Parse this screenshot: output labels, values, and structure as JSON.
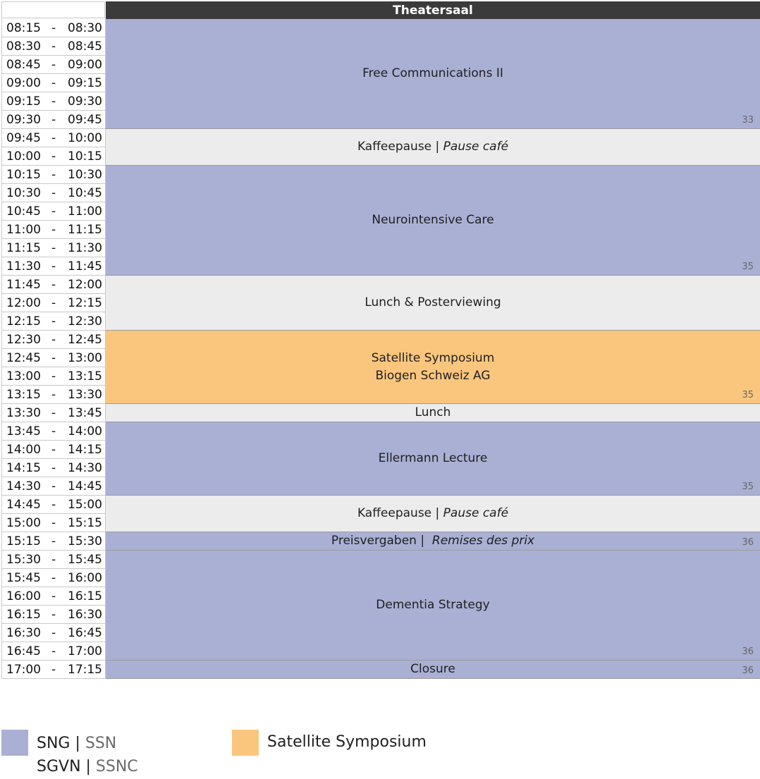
{
  "header": {
    "room": "Theatersaal"
  },
  "times": [
    [
      "08:15",
      "08:30"
    ],
    [
      "08:30",
      "08:45"
    ],
    [
      "08:45",
      "09:00"
    ],
    [
      "09:00",
      "09:15"
    ],
    [
      "09:15",
      "09:30"
    ],
    [
      "09:30",
      "09:45"
    ],
    [
      "09:45",
      "10:00"
    ],
    [
      "10:00",
      "10:15"
    ],
    [
      "10:15",
      "10:30"
    ],
    [
      "10:30",
      "10:45"
    ],
    [
      "10:45",
      "11:00"
    ],
    [
      "11:00",
      "11:15"
    ],
    [
      "11:15",
      "11:30"
    ],
    [
      "11:30",
      "11:45"
    ],
    [
      "11:45",
      "12:00"
    ],
    [
      "12:00",
      "12:15"
    ],
    [
      "12:15",
      "12:30"
    ],
    [
      "12:30",
      "12:45"
    ],
    [
      "12:45",
      "13:00"
    ],
    [
      "13:00",
      "13:15"
    ],
    [
      "13:15",
      "13:30"
    ],
    [
      "13:30",
      "13:45"
    ],
    [
      "13:45",
      "14:00"
    ],
    [
      "14:00",
      "14:15"
    ],
    [
      "14:15",
      "14:30"
    ],
    [
      "14:30",
      "14:45"
    ],
    [
      "14:45",
      "15:00"
    ],
    [
      "15:00",
      "15:15"
    ],
    [
      "15:15",
      "15:30"
    ],
    [
      "15:30",
      "15:45"
    ],
    [
      "15:45",
      "16:00"
    ],
    [
      "16:00",
      "16:15"
    ],
    [
      "16:15",
      "16:30"
    ],
    [
      "16:30",
      "16:45"
    ],
    [
      "16:45",
      "17:00"
    ],
    [
      "17:00",
      "17:15"
    ]
  ],
  "dash": "-",
  "sessions": [
    {
      "title": "Free Communications II",
      "type": "sng",
      "start": 0,
      "slots": 6,
      "page": "33"
    },
    {
      "title": "Kaffeepause | ",
      "title_italic": "Pause café",
      "type": "break",
      "start": 6,
      "slots": 2,
      "page": ""
    },
    {
      "title": "Neurointensive Care",
      "type": "sng",
      "start": 8,
      "slots": 6,
      "page": "35"
    },
    {
      "title": "Lunch & Posterviewing",
      "type": "break",
      "start": 14,
      "slots": 3,
      "page": ""
    },
    {
      "title": "Satellite Symposium",
      "title_line2": "Biogen Schweiz AG",
      "type": "sat",
      "start": 17,
      "slots": 4,
      "page": "35"
    },
    {
      "title": "Lunch",
      "type": "break",
      "start": 21,
      "slots": 1,
      "page": ""
    },
    {
      "title": "Ellermann Lecture",
      "type": "sng",
      "start": 22,
      "slots": 4,
      "page": "35"
    },
    {
      "title": "Kaffeepause | ",
      "title_italic": "Pause café",
      "type": "break",
      "start": 26,
      "slots": 2,
      "page": ""
    },
    {
      "title": "Preisvergaben |  ",
      "title_italic": "Remises des prix",
      "type": "sng",
      "start": 28,
      "slots": 1,
      "page": "36"
    },
    {
      "title": "Dementia Strategy",
      "type": "sng",
      "start": 29,
      "slots": 6,
      "page": "36"
    },
    {
      "title": "Closure",
      "type": "sng",
      "start": 35,
      "slots": 1,
      "page": "36"
    }
  ],
  "legend": {
    "sng_line1_dark": "SNG | ",
    "sng_line1_light": "SSN",
    "sng_line2_dark": "SGVN | ",
    "sng_line2_light": "SSNC",
    "satellite": "Satellite Symposium",
    "colors": {
      "sng": "#aab0d4",
      "satellite": "#fac67e",
      "break": "#ececec",
      "header": "#3b3b3b"
    }
  }
}
